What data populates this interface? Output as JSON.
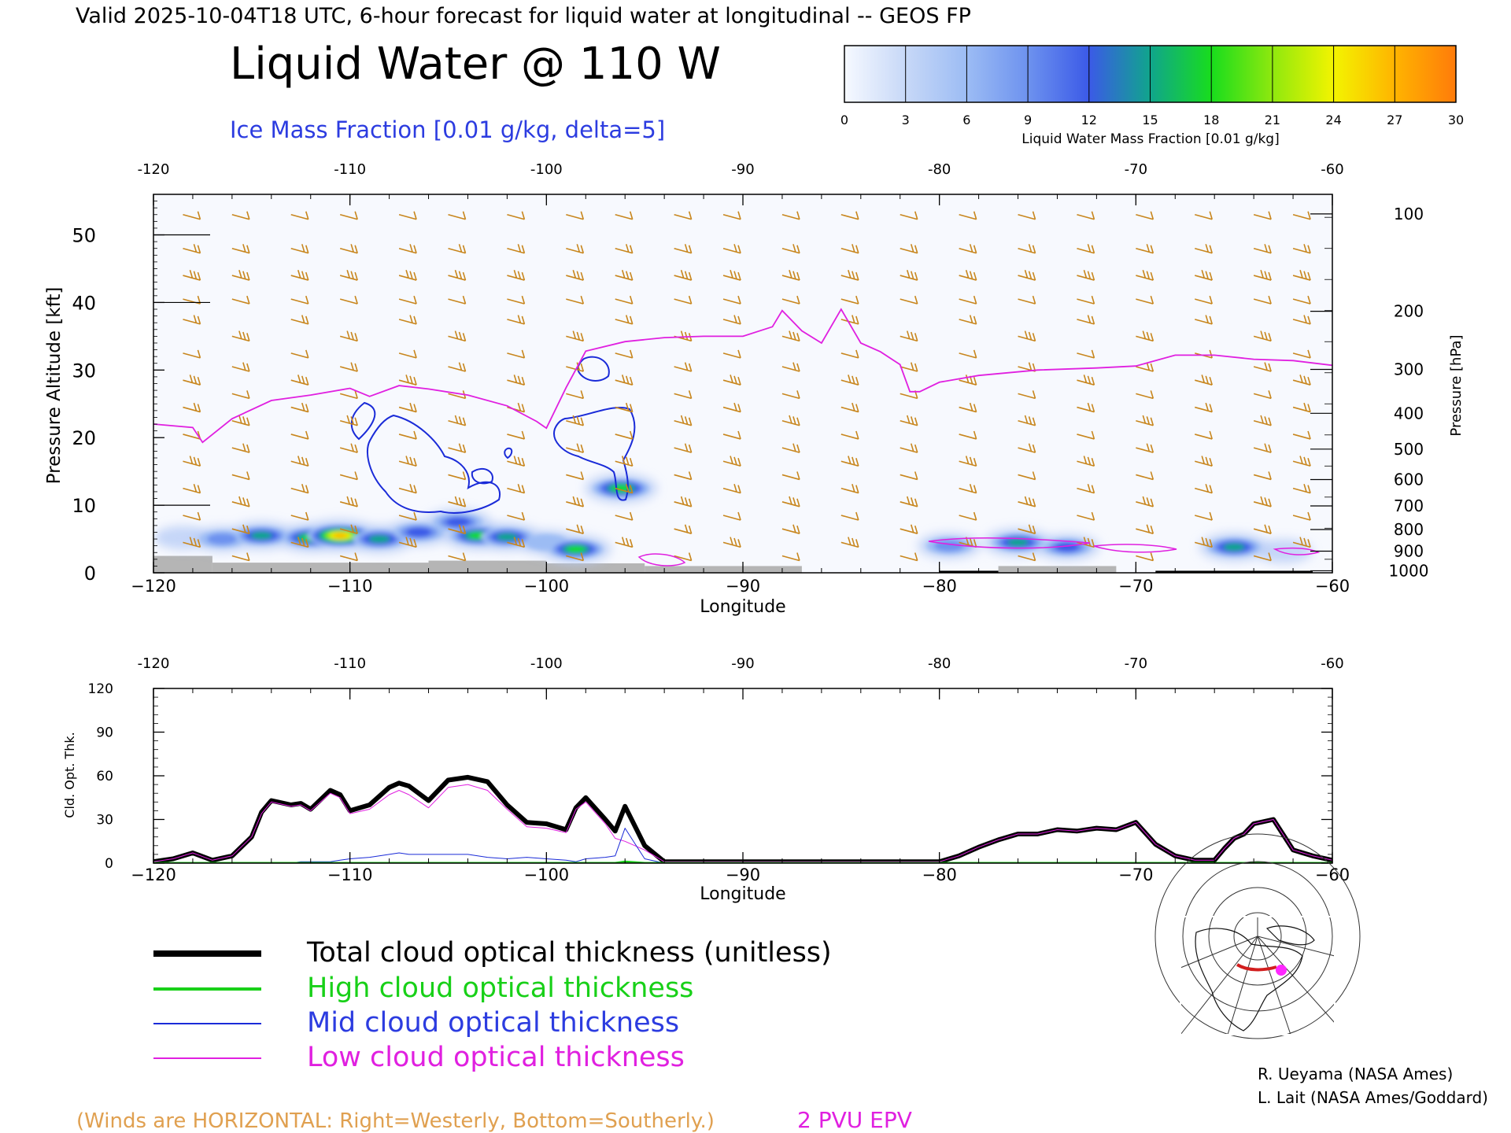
{
  "header": {
    "valid_line": "Valid 2025-10-04T18 UTC, 6-hour forecast for liquid water at longitudinal -- GEOS FP",
    "main_title": "Liquid Water @ 110 W",
    "subtitle": "Ice Mass Fraction [0.01 g/kg, delta=5]"
  },
  "colorbar": {
    "label": "Liquid Water Mass Fraction [0.01 g/kg]",
    "ticks": [
      "0",
      "3",
      "6",
      "9",
      "12",
      "15",
      "18",
      "21",
      "24",
      "27",
      "30"
    ],
    "colors": [
      "#f6f9ff",
      "#c7d8f7",
      "#9cbcf4",
      "#6d92ef",
      "#3b5ae7",
      "#10a58c",
      "#18dd1d",
      "#8fe80e",
      "#f3f400",
      "#ffb400",
      "#ff7b0a"
    ]
  },
  "colors": {
    "wind_barb": "#c8861d",
    "ice_contour": "#1a2bd8",
    "epv_line": "#e020e0",
    "terrain": "#b5b5b5",
    "total": "#000000",
    "high": "#18d018",
    "mid": "#1a2bd8",
    "low": "#e020e0",
    "winds_note": "#e0a050"
  },
  "chart_data": [
    {
      "type": "heatmap",
      "title": "Liquid Water @ 110 W",
      "xlabel": "Longitude",
      "ylabel_left": "Pressure Altitude [kft]",
      "ylabel_right": "Pressure [hPa]",
      "xlim": [
        -120,
        -60
      ],
      "ylim": [
        0,
        56
      ],
      "x_ticks": [
        "−120",
        "−110",
        "−100",
        "−90",
        "−80",
        "−70",
        "−60"
      ],
      "x_top_ticks": [
        "-120",
        "-110",
        "-100",
        "-90",
        "-80",
        "-70",
        "-60"
      ],
      "y_ticks": [
        "0",
        "10",
        "20",
        "30",
        "40",
        "50"
      ],
      "pressure_ticks": [
        {
          "label": "100",
          "kft": 53.1
        },
        {
          "label": "200",
          "kft": 38.7
        },
        {
          "label": "300",
          "kft": 30.1
        },
        {
          "label": "400",
          "kft": 23.6
        },
        {
          "label": "500",
          "kft": 18.3
        },
        {
          "label": "600",
          "kft": 13.8
        },
        {
          "label": "700",
          "kft": 9.9
        },
        {
          "label": "800",
          "kft": 6.4
        },
        {
          "label": "900",
          "kft": 3.2
        },
        {
          "label": "1000",
          "kft": 0.3
        }
      ],
      "epv_2pvu_line": {
        "name": "2 PVU EPV",
        "lon": [
          -120,
          -118,
          -117.5,
          -116,
          -114,
          -112,
          -110,
          -109,
          -107.5,
          -106,
          -104,
          -102,
          -100.5,
          -100,
          -99,
          -98,
          -96,
          -94,
          -92,
          -90,
          -88.5,
          -88,
          -87,
          -86,
          -85,
          -84,
          -83,
          -82,
          -81.5,
          -81,
          -80,
          -78,
          -75,
          -72,
          -70,
          -68,
          -66,
          -64,
          -62,
          -60
        ],
        "kft": [
          22,
          21.5,
          19.3,
          22.8,
          25.5,
          26.3,
          27.3,
          26.1,
          27.7,
          27.2,
          26.3,
          24.7,
          22.4,
          21.4,
          27.4,
          32.8,
          34.2,
          34.8,
          35,
          35,
          36.4,
          38.8,
          35.8,
          34,
          39,
          34,
          32.7,
          30.8,
          26.8,
          26.8,
          28.2,
          29.2,
          30,
          30.3,
          30.6,
          32.2,
          32.2,
          31.6,
          31.4,
          30.7
        ]
      },
      "liquid_water_blobs": [
        {
          "lon": -118.5,
          "kft": 5.2,
          "value": 4
        },
        {
          "lon": -116.5,
          "kft": 5.0,
          "value": 10
        },
        {
          "lon": -114.5,
          "kft": 5.5,
          "value": 17
        },
        {
          "lon": -112,
          "kft": 5.2,
          "value": 19
        },
        {
          "lon": -110.5,
          "kft": 5.5,
          "value": 28
        },
        {
          "lon": -108.5,
          "kft": 5.0,
          "value": 17
        },
        {
          "lon": -106.5,
          "kft": 6.0,
          "value": 14
        },
        {
          "lon": -104.5,
          "kft": 7.5,
          "value": 13
        },
        {
          "lon": -103.5,
          "kft": 5.5,
          "value": 18
        },
        {
          "lon": -102,
          "kft": 5.3,
          "value": 16
        },
        {
          "lon": -100,
          "kft": 4.5,
          "value": 8
        },
        {
          "lon": -98.5,
          "kft": 3.5,
          "value": 18
        },
        {
          "lon": -96.2,
          "kft": 12.5,
          "value": 20
        },
        {
          "lon": -79.5,
          "kft": 4.0,
          "value": 10
        },
        {
          "lon": -76,
          "kft": 4.5,
          "value": 16
        },
        {
          "lon": -73.5,
          "kft": 3.8,
          "value": 12
        },
        {
          "lon": -65,
          "kft": 3.8,
          "value": 17
        },
        {
          "lon": -62.5,
          "kft": 3.2,
          "value": 5
        }
      ],
      "ice_mass_contours_level": 5,
      "terrain_kft": [
        {
          "lon_start": -120,
          "lon_end": -117,
          "kft": 2.5
        },
        {
          "lon_start": -117,
          "lon_end": -106,
          "kft": 1.5
        },
        {
          "lon_start": -106,
          "lon_end": -100,
          "kft": 1.8
        },
        {
          "lon_start": -100,
          "lon_end": -95,
          "kft": 1.4
        },
        {
          "lon_start": -95,
          "lon_end": -87,
          "kft": 1.0
        },
        {
          "lon_start": -77,
          "lon_end": -71,
          "kft": 1.0
        }
      ]
    },
    {
      "type": "line",
      "xlabel": "Longitude",
      "ylabel": "Cld. Opt. Thk.",
      "xlim": [
        -120,
        -60
      ],
      "ylim": [
        0,
        120
      ],
      "y_ticks": [
        "0",
        "30",
        "60",
        "90",
        "120"
      ],
      "x_ticks": [
        "−120",
        "−110",
        "−100",
        "−90",
        "−80",
        "−70",
        "−60"
      ],
      "x_top_ticks": [
        "-120",
        "-110",
        "-100",
        "-90",
        "-80",
        "-70",
        "-60"
      ],
      "x": [
        -120,
        -119,
        -118,
        -117,
        -116,
        -115,
        -114.5,
        -114,
        -113,
        -112.5,
        -112,
        -111,
        -110.5,
        -110,
        -109,
        -108,
        -107.5,
        -107,
        -106,
        -105,
        -104,
        -103,
        -102,
        -101,
        -100,
        -99,
        -98.5,
        -98,
        -97,
        -96.5,
        -96,
        -95,
        -94,
        -93,
        -90,
        -85,
        -81,
        -80,
        -79,
        -78,
        -77,
        -76,
        -75,
        -74,
        -73,
        -72,
        -71,
        -70,
        -69,
        -68,
        -67,
        -66,
        -65.5,
        -65,
        -64.5,
        -64,
        -63,
        -62,
        -61,
        -60
      ],
      "series": [
        {
          "name": "Total cloud optical thickness (unitless)",
          "values": [
            1,
            3,
            7,
            2,
            5,
            18,
            35,
            43,
            40,
            41,
            37,
            50,
            47,
            36,
            40,
            52,
            55,
            53,
            43,
            57,
            59,
            56,
            40,
            28,
            27,
            23,
            38,
            45,
            30,
            22,
            39,
            12,
            1,
            1,
            1,
            1,
            1,
            1,
            5,
            11,
            16,
            20,
            20,
            23,
            22,
            24,
            23,
            28,
            13,
            5,
            2,
            2,
            10,
            17,
            20,
            27,
            30,
            9,
            5,
            2
          ],
          "width": 6
        },
        {
          "name": "High cloud optical thickness",
          "values": [
            0,
            0,
            0,
            0,
            0,
            0,
            0,
            0,
            0,
            0,
            0,
            0,
            0,
            0,
            0,
            0,
            0,
            0,
            0,
            0,
            0,
            0,
            0,
            0,
            0,
            0,
            0,
            0,
            0,
            0,
            1,
            0,
            0,
            0,
            0,
            0,
            0,
            0,
            0,
            0,
            0,
            0,
            0,
            0,
            0,
            0,
            0,
            0,
            0,
            0,
            0,
            0,
            0,
            0,
            0,
            0,
            0,
            0,
            0,
            0
          ],
          "width": 3
        },
        {
          "name": "Mid cloud optical thickness",
          "values": [
            0,
            0,
            0,
            0,
            0,
            0,
            0,
            0,
            0,
            1,
            1,
            1,
            2,
            3,
            4,
            6,
            7,
            6,
            6,
            6,
            6,
            4,
            3,
            4,
            3,
            2,
            1,
            3,
            4,
            5,
            24,
            3,
            0,
            0,
            0,
            0,
            0,
            0,
            0,
            0,
            0,
            0,
            0,
            0,
            0,
            0,
            0,
            0,
            0,
            0,
            0,
            0,
            0,
            0,
            0,
            0,
            0,
            0,
            0,
            0
          ],
          "width": 1
        },
        {
          "name": "Low cloud optical thickness",
          "values": [
            1,
            3,
            7,
            2,
            5,
            18,
            34,
            42,
            39,
            40,
            36,
            48,
            45,
            34,
            37,
            47,
            50,
            47,
            38,
            52,
            54,
            50,
            37,
            25,
            24,
            21,
            37,
            42,
            27,
            17,
            15,
            9,
            1,
            1,
            1,
            1,
            1,
            1,
            5,
            11,
            16,
            20,
            20,
            23,
            22,
            24,
            23,
            28,
            13,
            5,
            2,
            2,
            10,
            17,
            20,
            27,
            30,
            9,
            5,
            2
          ],
          "width": 1
        }
      ]
    }
  ],
  "legend": {
    "total_label": "Total cloud optical thickness (unitless)",
    "high_label": "High cloud optical thickness",
    "mid_label": "Mid cloud optical thickness",
    "low_label": "Low cloud optical thickness"
  },
  "credits": {
    "line1": "R. Ueyama (NASA Ames)",
    "line2": "L. Lait (NASA Ames/Goddard)"
  },
  "footer": {
    "winds_note": "(Winds are HORIZONTAL: Right=Westerly, Bottom=Southerly.)",
    "epv_label": "2 PVU EPV"
  },
  "locator_map": {
    "icon": "north-polar-locator-map-icon"
  }
}
